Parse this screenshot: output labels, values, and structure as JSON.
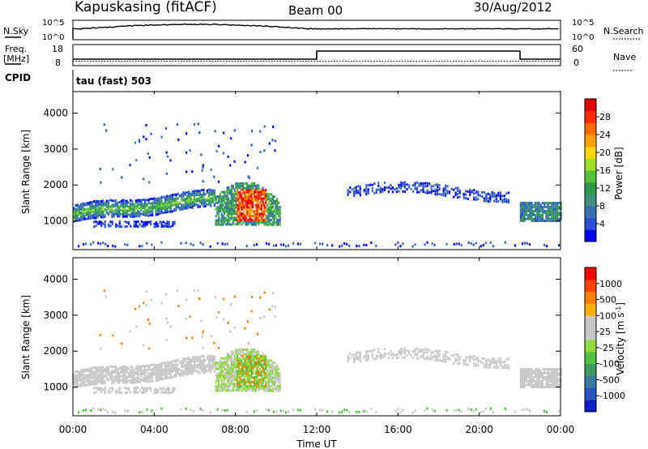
{
  "header": {
    "station": "Kapuskasing (fitACF)",
    "beam": "Beam 00",
    "date": "30/Aug/2012"
  },
  "top_panels": {
    "nsky_label": "N.Sky",
    "nsky_tick_top": "10^5",
    "nsky_tick_bottom": "10^0",
    "nsearch_label": "N.Search",
    "nsearch_tick_top": "10^5",
    "nsearch_tick_bottom": "10^0",
    "freq_label": "Freq.",
    "freq_unit": "[MHz]",
    "freq_tick_top": "18",
    "freq_tick_bottom": "8",
    "nave_label": "Nave",
    "nave_tick_top": "60",
    "nave_tick_bottom": "0",
    "cpid_label": "CPID",
    "cpid_value": "tau (fast) 503"
  },
  "chart_data": [
    {
      "type": "heatmap",
      "name": "power",
      "ylabel": "Slant Range [km]",
      "xlabel": "Time UT",
      "ylim": [
        200,
        4600
      ],
      "xlim": [
        0,
        24
      ],
      "y_ticks": [
        "4000",
        "3000",
        "2000",
        "1000"
      ],
      "colorbar_label": "Power [dB]",
      "colorbar_ticks": [
        "28",
        "24",
        "20",
        "16",
        "12",
        "8",
        "4"
      ],
      "colorbar_colors": [
        "#0000ff",
        "#2a4fd6",
        "#3a6fb0",
        "#3f8f7a",
        "#2f9a4a",
        "#55c23a",
        "#9fdc2a",
        "#ffd400",
        "#ffa000",
        "#ff6a00",
        "#ff2a00",
        "#e00000"
      ],
      "scatter_color": "#888888"
    },
    {
      "type": "heatmap",
      "name": "velocity",
      "ylabel": "Slant Range [km]",
      "xlabel": "Time UT",
      "ylim": [
        200,
        4600
      ],
      "xlim": [
        0,
        24
      ],
      "y_ticks": [
        "4000",
        "3000",
        "2000",
        "1000"
      ],
      "colorbar_label": "Velocity [m s",
      "colorbar_label_sup": "-1",
      "colorbar_label_end": "]",
      "colorbar_ticks": [
        "1000",
        "500",
        "100",
        "25",
        "-25",
        "-100",
        "-500",
        "-1000"
      ],
      "colorbar_colors": [
        "#1020c8",
        "#2a55c0",
        "#3a7aa0",
        "#3f9a60",
        "#50c040",
        "#8fd840",
        "#c8c8c8",
        "#c8c8c8",
        "#ffb000",
        "#ff8000",
        "#ff4000",
        "#ff0000"
      ]
    }
  ],
  "x_axis": {
    "ticks": [
      "00:00",
      "04:00",
      "08:00",
      "12:00",
      "16:00",
      "20:00",
      "00:00"
    ],
    "label": "Time UT"
  }
}
